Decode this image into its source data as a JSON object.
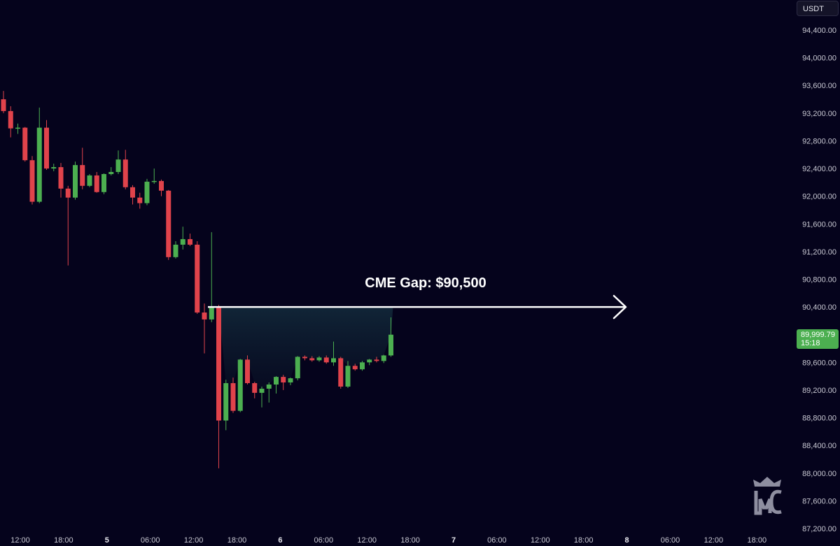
{
  "currency_label": "USDT",
  "price_tag": {
    "price": "89,999.79",
    "countdown": "15:18"
  },
  "colors": {
    "bg": "#05031c",
    "up": "#4caf50",
    "down": "#e0434b",
    "text": "#c8c8d2",
    "gap_fill": "#0f2233"
  },
  "logo_icon": "mc-crown-logo",
  "chart_data": {
    "type": "candlestick",
    "title": "",
    "xlabel": "",
    "ylabel": "",
    "grid": false,
    "ylim": [
      87200,
      94800
    ],
    "y_ticks": [
      "94,400.00",
      "94,000.00",
      "93,600.00",
      "93,200.00",
      "92,800.00",
      "92,400.00",
      "92,000.00",
      "91,600.00",
      "91,200.00",
      "90,800.00",
      "90,400.00",
      "90,000.00",
      "89,600.00",
      "89,200.00",
      "88,800.00",
      "88,400.00",
      "88,000.00",
      "87,600.00",
      "87,200.00"
    ],
    "y_tick_values": [
      94400,
      94000,
      93600,
      93200,
      92800,
      92400,
      92000,
      91600,
      91200,
      90800,
      90400,
      90000,
      89600,
      89200,
      88800,
      88400,
      88000,
      87600,
      87200
    ],
    "x_ticks": [
      {
        "label": "12:00",
        "bold": false
      },
      {
        "label": "18:00",
        "bold": false
      },
      {
        "label": "5",
        "bold": true
      },
      {
        "label": "06:00",
        "bold": false
      },
      {
        "label": "12:00",
        "bold": false
      },
      {
        "label": "18:00",
        "bold": false
      },
      {
        "label": "6",
        "bold": true
      },
      {
        "label": "06:00",
        "bold": false
      },
      {
        "label": "12:00",
        "bold": false
      },
      {
        "label": "18:00",
        "bold": false
      },
      {
        "label": "7",
        "bold": true
      },
      {
        "label": "06:00",
        "bold": false
      },
      {
        "label": "12:00",
        "bold": false
      },
      {
        "label": "18:00",
        "bold": false
      },
      {
        "label": "8",
        "bold": true
      },
      {
        "label": "06:00",
        "bold": false
      },
      {
        "label": "12:00",
        "bold": false
      },
      {
        "label": "18:00",
        "bold": false
      }
    ],
    "candles": [
      {
        "o": 93400,
        "h": 93520,
        "l": 93200,
        "c": 93230
      },
      {
        "o": 93230,
        "h": 93300,
        "l": 92850,
        "c": 92980
      },
      {
        "o": 92980,
        "h": 93050,
        "l": 92900,
        "c": 92990
      },
      {
        "o": 92990,
        "h": 93000,
        "l": 92500,
        "c": 92520
      },
      {
        "o": 92520,
        "h": 92580,
        "l": 91880,
        "c": 91920
      },
      {
        "o": 91920,
        "h": 93280,
        "l": 91900,
        "c": 92990
      },
      {
        "o": 92990,
        "h": 93100,
        "l": 92380,
        "c": 92400
      },
      {
        "o": 92400,
        "h": 92470,
        "l": 92360,
        "c": 92420
      },
      {
        "o": 92420,
        "h": 92480,
        "l": 91980,
        "c": 92110
      },
      {
        "o": 92110,
        "h": 92150,
        "l": 91000,
        "c": 91980
      },
      {
        "o": 91980,
        "h": 92500,
        "l": 91950,
        "c": 92450
      },
      {
        "o": 92450,
        "h": 92700,
        "l": 92100,
        "c": 92150
      },
      {
        "o": 92150,
        "h": 92320,
        "l": 92130,
        "c": 92300
      },
      {
        "o": 92300,
        "h": 92350,
        "l": 92050,
        "c": 92060
      },
      {
        "o": 92060,
        "h": 92330,
        "l": 92030,
        "c": 92320
      },
      {
        "o": 92320,
        "h": 92420,
        "l": 92300,
        "c": 92350
      },
      {
        "o": 92350,
        "h": 92660,
        "l": 92320,
        "c": 92530
      },
      {
        "o": 92530,
        "h": 92670,
        "l": 92100,
        "c": 92130
      },
      {
        "o": 92130,
        "h": 92160,
        "l": 91880,
        "c": 91980
      },
      {
        "o": 91980,
        "h": 92050,
        "l": 91820,
        "c": 91900
      },
      {
        "o": 91900,
        "h": 92250,
        "l": 91870,
        "c": 92210
      },
      {
        "o": 92210,
        "h": 92400,
        "l": 92180,
        "c": 92220
      },
      {
        "o": 92220,
        "h": 92240,
        "l": 92000,
        "c": 92080
      },
      {
        "o": 92080,
        "h": 92090,
        "l": 91080,
        "c": 91120
      },
      {
        "o": 91120,
        "h": 91350,
        "l": 91100,
        "c": 91300
      },
      {
        "o": 91300,
        "h": 91560,
        "l": 91230,
        "c": 91380
      },
      {
        "o": 91380,
        "h": 91460,
        "l": 91280,
        "c": 91300
      },
      {
        "o": 91300,
        "h": 91350,
        "l": 90300,
        "c": 90320
      },
      {
        "o": 90320,
        "h": 90450,
        "l": 89730,
        "c": 90220
      },
      {
        "o": 90220,
        "h": 91480,
        "l": 90180,
        "c": 90400
      },
      {
        "o": 90400,
        "h": 90430,
        "l": 88070,
        "c": 88760
      },
      {
        "o": 88760,
        "h": 89350,
        "l": 88620,
        "c": 89300
      },
      {
        "o": 89300,
        "h": 89380,
        "l": 88870,
        "c": 88900
      },
      {
        "o": 88900,
        "h": 89650,
        "l": 88880,
        "c": 89640
      },
      {
        "o": 89640,
        "h": 89700,
        "l": 89280,
        "c": 89300
      },
      {
        "o": 89300,
        "h": 89320,
        "l": 89080,
        "c": 89160
      },
      {
        "o": 89160,
        "h": 89250,
        "l": 88950,
        "c": 89220
      },
      {
        "o": 89220,
        "h": 89310,
        "l": 89020,
        "c": 89280
      },
      {
        "o": 89280,
        "h": 89400,
        "l": 89150,
        "c": 89390
      },
      {
        "o": 89390,
        "h": 89420,
        "l": 89200,
        "c": 89310
      },
      {
        "o": 89310,
        "h": 89380,
        "l": 89270,
        "c": 89370
      },
      {
        "o": 89370,
        "h": 89690,
        "l": 89340,
        "c": 89680
      },
      {
        "o": 89680,
        "h": 89700,
        "l": 89630,
        "c": 89660
      },
      {
        "o": 89660,
        "h": 89690,
        "l": 89610,
        "c": 89630
      },
      {
        "o": 89630,
        "h": 89690,
        "l": 89610,
        "c": 89670
      },
      {
        "o": 89670,
        "h": 89700,
        "l": 89580,
        "c": 89600
      },
      {
        "o": 89600,
        "h": 89900,
        "l": 89550,
        "c": 89660
      },
      {
        "o": 89660,
        "h": 89680,
        "l": 89220,
        "c": 89250
      },
      {
        "o": 89250,
        "h": 89620,
        "l": 89230,
        "c": 89550
      },
      {
        "o": 89550,
        "h": 89580,
        "l": 89480,
        "c": 89500
      },
      {
        "o": 89500,
        "h": 89620,
        "l": 89480,
        "c": 89600
      },
      {
        "o": 89600,
        "h": 89650,
        "l": 89560,
        "c": 89640
      },
      {
        "o": 89640,
        "h": 89680,
        "l": 89600,
        "c": 89620
      },
      {
        "o": 89620,
        "h": 89710,
        "l": 89590,
        "c": 89700
      },
      {
        "o": 89700,
        "h": 90250,
        "l": 89680,
        "c": 90000
      }
    ],
    "annotation": {
      "text": "CME Gap: $90,500",
      "level": 90400
    }
  }
}
